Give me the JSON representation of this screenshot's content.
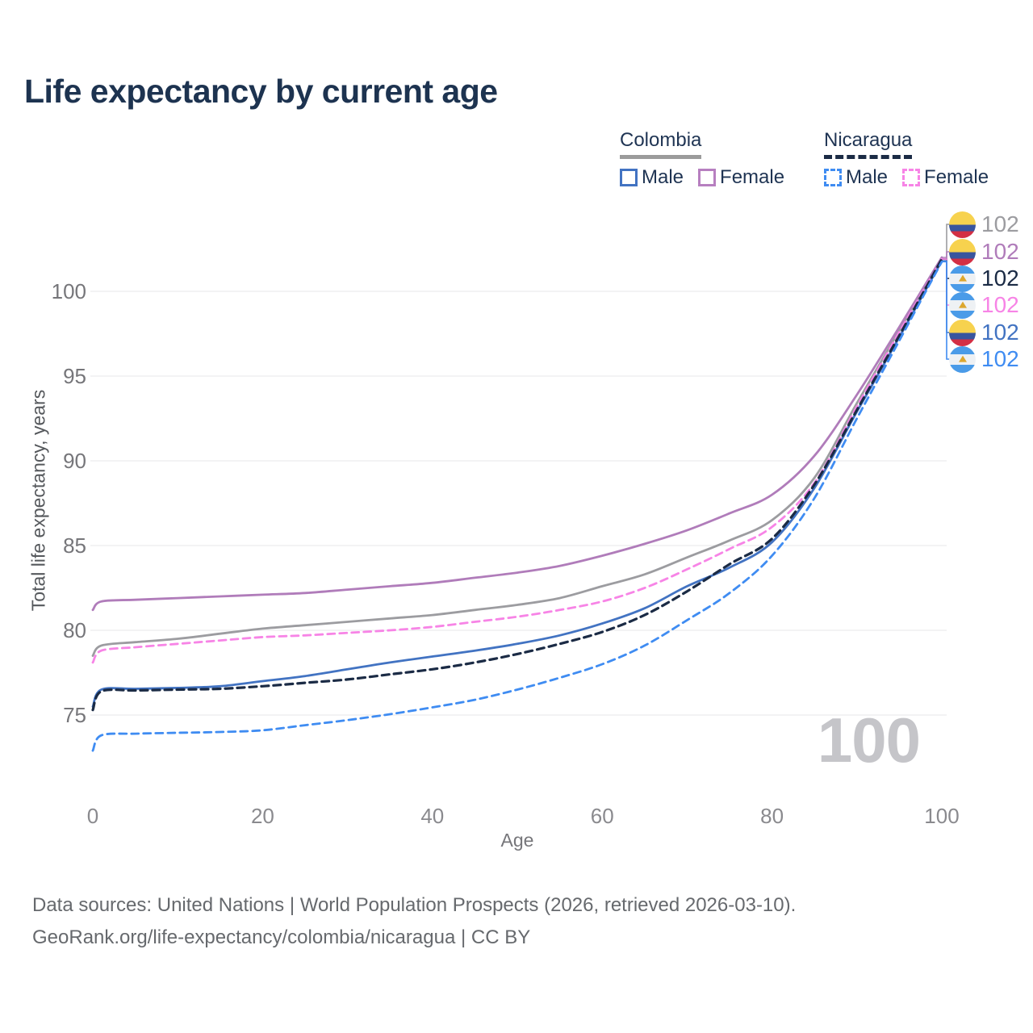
{
  "title": "Life expectancy by current age",
  "watermark": "100",
  "legend": {
    "groups": [
      {
        "country": "Colombia",
        "line_style": "solid",
        "underline_color": "#9b9b9b",
        "items": [
          {
            "label": "Male",
            "color": "#4273c2",
            "dashed": false
          },
          {
            "label": "Female",
            "color": "#b77fc0",
            "dashed": false
          }
        ]
      },
      {
        "country": "Nicaragua",
        "line_style": "dashed",
        "underline_color": "#1b2b45",
        "items": [
          {
            "label": "Male",
            "color": "#3f8cf2",
            "dashed": true
          },
          {
            "label": "Female",
            "color": "#f784e6",
            "dashed": true
          }
        ]
      }
    ]
  },
  "axes": {
    "x_label": "Age",
    "y_label": "Total life expectancy, years",
    "x_ticks": [
      0,
      20,
      40,
      60,
      80,
      100
    ],
    "y_ticks": [
      75,
      80,
      85,
      90,
      95,
      100
    ],
    "x_range": [
      0,
      100
    ],
    "y_range": [
      72.5,
      102.5
    ],
    "grid": "horizontal"
  },
  "chart_data": {
    "type": "line",
    "title": "Life expectancy by current age",
    "xlabel": "Age",
    "ylabel": "Total life expectancy, years",
    "x": [
      0,
      1,
      5,
      10,
      15,
      20,
      25,
      30,
      35,
      40,
      45,
      50,
      55,
      60,
      65,
      70,
      75,
      80,
      85,
      90,
      95,
      100
    ],
    "series": [
      {
        "name": "Colombia all",
        "country": "Colombia",
        "sex": "all",
        "color": "#9c9ca0",
        "dashed": false,
        "flag": "colombia",
        "end_label": "102",
        "values": [
          78.5,
          79.1,
          79.3,
          79.5,
          79.8,
          80.1,
          80.3,
          80.5,
          80.7,
          80.9,
          81.2,
          81.5,
          81.9,
          82.6,
          83.3,
          84.3,
          85.3,
          86.5,
          89.0,
          93.4,
          97.7,
          101.9
        ]
      },
      {
        "name": "Colombia Female",
        "country": "Colombia",
        "sex": "female",
        "color": "#b07cba",
        "dashed": false,
        "flag": "colombia",
        "end_label": "102",
        "values": [
          81.2,
          81.7,
          81.8,
          81.9,
          82.0,
          82.1,
          82.2,
          82.4,
          82.6,
          82.8,
          83.1,
          83.4,
          83.8,
          84.4,
          85.1,
          85.9,
          86.9,
          88.0,
          90.3,
          93.9,
          97.9,
          102.0
        ]
      },
      {
        "name": "Colombia Male",
        "country": "Colombia",
        "sex": "male",
        "color": "#4273c2",
        "dashed": false,
        "flag": "colombia",
        "end_label": "102",
        "values": [
          75.5,
          76.5,
          76.55,
          76.6,
          76.7,
          77.0,
          77.3,
          77.7,
          78.1,
          78.45,
          78.8,
          79.2,
          79.7,
          80.4,
          81.3,
          82.6,
          83.7,
          85.2,
          88.4,
          92.9,
          97.3,
          101.8
        ]
      },
      {
        "name": "Nicaragua Female",
        "country": "Nicaragua",
        "sex": "female",
        "color": "#f784e6",
        "dashed": true,
        "flag": "nicaragua",
        "end_label": "102",
        "values": [
          78.1,
          78.8,
          79.0,
          79.2,
          79.4,
          79.6,
          79.7,
          79.85,
          80.0,
          80.2,
          80.5,
          80.8,
          81.2,
          81.7,
          82.5,
          83.6,
          84.8,
          86.1,
          88.7,
          93.2,
          97.6,
          101.9
        ]
      },
      {
        "name": "Nicaragua all",
        "country": "Nicaragua",
        "sex": "all",
        "color": "#1b2b45",
        "dashed": true,
        "flag": "nicaragua",
        "end_label": "102",
        "values": [
          75.3,
          76.4,
          76.45,
          76.5,
          76.55,
          76.7,
          76.9,
          77.1,
          77.4,
          77.7,
          78.1,
          78.6,
          79.2,
          79.9,
          80.9,
          82.3,
          83.9,
          85.4,
          88.6,
          93.0,
          97.4,
          101.9
        ]
      },
      {
        "name": "Nicaragua Male",
        "country": "Nicaragua",
        "sex": "male",
        "color": "#3f8cf2",
        "dashed": true,
        "flag": "nicaragua",
        "end_label": "102",
        "values": [
          72.9,
          73.8,
          73.9,
          73.95,
          74.0,
          74.1,
          74.4,
          74.7,
          75.05,
          75.45,
          75.9,
          76.5,
          77.2,
          78.0,
          79.1,
          80.6,
          82.2,
          84.4,
          87.8,
          92.5,
          97.1,
          101.75
        ]
      }
    ],
    "end_labels": [
      {
        "series": "Colombia all",
        "flag": "colombia",
        "value": "102",
        "color": "#9c9ca0"
      },
      {
        "series": "Colombia Female",
        "flag": "colombia",
        "value": "102",
        "color": "#b07cba"
      },
      {
        "series": "Nicaragua all",
        "flag": "nicaragua",
        "value": "102",
        "color": "#1b2b45"
      },
      {
        "series": "Nicaragua Female",
        "flag": "nicaragua",
        "value": "102",
        "color": "#f784e6"
      },
      {
        "series": "Colombia Male",
        "flag": "colombia",
        "value": "102",
        "color": "#4273c2"
      },
      {
        "series": "Nicaragua Male",
        "flag": "nicaragua",
        "value": "102",
        "color": "#3f8cf2"
      }
    ]
  },
  "footer": {
    "line1": "Data sources: United Nations | World Population Prospects (2026, retrieved 2026-03-10).",
    "line2": "GeoRank.org/life-expectancy/colombia/nicaragua | CC BY"
  }
}
